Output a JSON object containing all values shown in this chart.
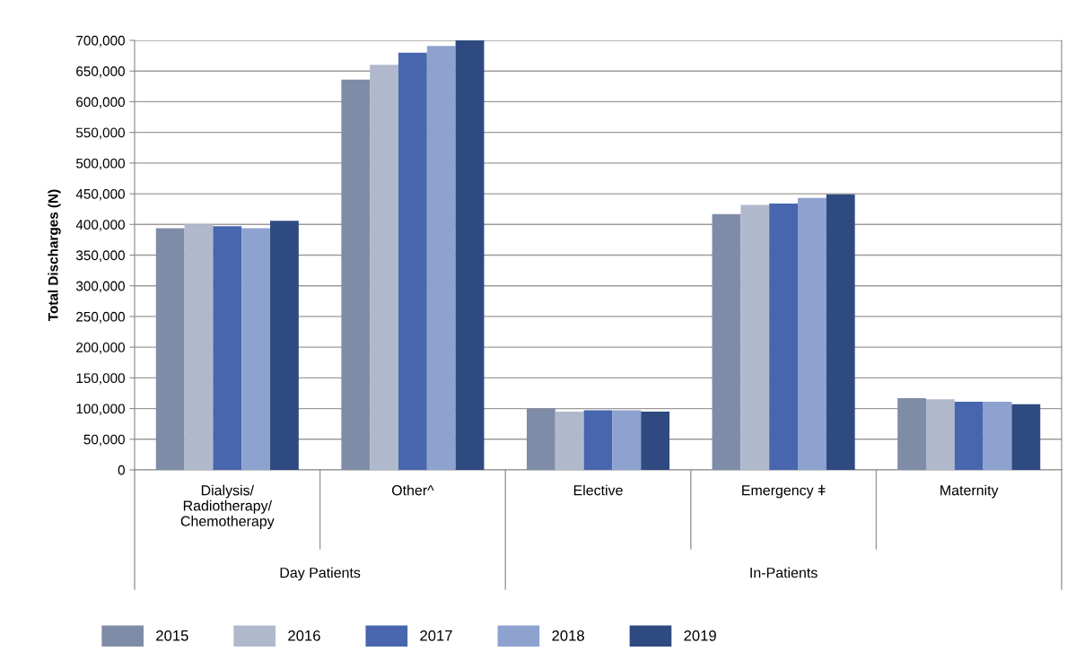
{
  "chart_data": {
    "type": "bar",
    "ylabel": "Total Discharges (N)",
    "categories": [
      "Dialysis/\nRadiotherapy/\nChemotherapy",
      "Other^",
      "Elective",
      "Emergency ǂ",
      "Maternity"
    ],
    "series": [
      {
        "name": "2015",
        "color": "#7f8ca8",
        "values": [
          394000,
          636000,
          100000,
          417000,
          117000
        ]
      },
      {
        "name": "2016",
        "color": "#b0b9cc",
        "values": [
          400000,
          660000,
          95000,
          432000,
          115000
        ]
      },
      {
        "name": "2017",
        "color": "#4766ad",
        "values": [
          397000,
          680000,
          97000,
          434000,
          111000
        ]
      },
      {
        "name": "2018",
        "color": "#8ea2cf",
        "values": [
          394000,
          691000,
          97000,
          443000,
          111000
        ]
      },
      {
        "name": "2019",
        "color": "#2f4a80",
        "values": [
          406000,
          700000,
          95000,
          449000,
          107000
        ]
      }
    ],
    "ylim": [
      0,
      700000
    ],
    "yticks": [
      {
        "value": 0,
        "label": "0"
      },
      {
        "value": 50000,
        "label": "50,000"
      },
      {
        "value": 100000,
        "label": "100,000"
      },
      {
        "value": 150000,
        "label": "150,000"
      },
      {
        "value": 200000,
        "label": "200,000"
      },
      {
        "value": 250000,
        "label": "250,000"
      },
      {
        "value": 300000,
        "label": "300,000"
      },
      {
        "value": 350000,
        "label": "350,000"
      },
      {
        "value": 400000,
        "label": "400,000"
      },
      {
        "value": 450000,
        "label": "450,000"
      },
      {
        "value": 500000,
        "label": "500,000"
      },
      {
        "value": 550000,
        "label": "550,000"
      },
      {
        "value": 600000,
        "label": "600,000"
      },
      {
        "value": 650000,
        "label": "650,000"
      },
      {
        "value": 700000,
        "label": "700,000"
      }
    ],
    "annotations": [
      "Day Patients",
      "In-Patients"
    ],
    "grid": "y",
    "legend": "bottom"
  }
}
